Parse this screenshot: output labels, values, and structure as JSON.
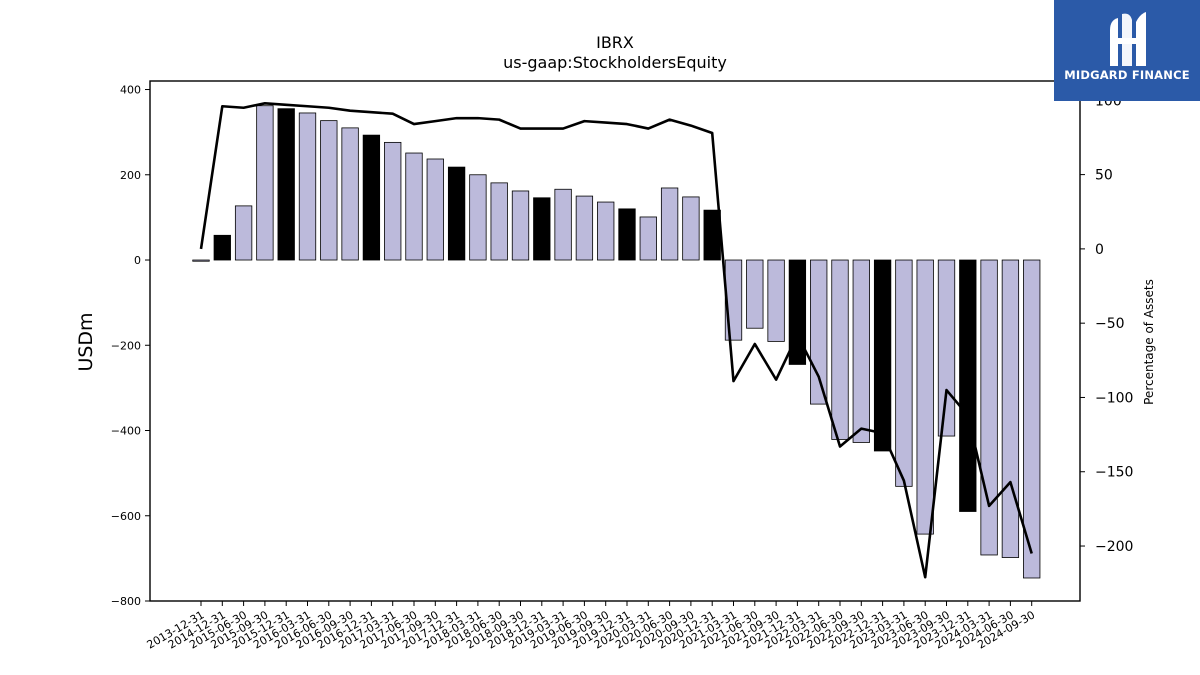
{
  "chart_data": {
    "type": "bar+line",
    "title": "IBRX",
    "subtitle": "us-gaap:StockholdersEquity",
    "ylabel": "USDm",
    "y2label": "Percentage of Assets",
    "ylim": [
      -800,
      420
    ],
    "y2lim": [
      -237,
      113
    ],
    "yticks": [
      -800,
      -600,
      -400,
      -200,
      0,
      200,
      400
    ],
    "y2ticks": [
      -200,
      -150,
      -100,
      -50,
      0,
      50,
      100
    ],
    "categories": [
      "2013-12-31",
      "2014-12-31",
      "2015-06-30",
      "2015-09-30",
      "2015-12-31",
      "2016-03-31",
      "2016-06-30",
      "2016-09-30",
      "2016-12-31",
      "2017-03-31",
      "2017-06-30",
      "2017-09-30",
      "2017-12-31",
      "2018-03-31",
      "2018-06-30",
      "2018-09-30",
      "2018-12-31",
      "2019-03-31",
      "2019-06-30",
      "2019-09-30",
      "2019-12-31",
      "2020-03-31",
      "2020-06-30",
      "2020-09-30",
      "2020-12-31",
      "2021-03-31",
      "2021-06-30",
      "2021-09-30",
      "2021-12-31",
      "2022-03-31",
      "2022-06-30",
      "2022-09-30",
      "2022-12-31",
      "2023-03-31",
      "2023-06-30",
      "2023-09-30",
      "2023-12-31",
      "2024-03-31",
      "2024-06-30",
      "2024-09-30"
    ],
    "highlight": [
      false,
      true,
      false,
      false,
      true,
      false,
      false,
      false,
      true,
      false,
      false,
      false,
      true,
      false,
      false,
      false,
      true,
      false,
      false,
      false,
      true,
      false,
      false,
      false,
      true,
      false,
      false,
      false,
      true,
      false,
      false,
      false,
      true,
      false,
      false,
      false,
      true,
      false,
      false,
      false
    ],
    "series": [
      {
        "type": "bar",
        "axis": "left",
        "values": [
          -2,
          58,
          127,
          362,
          355,
          345,
          327,
          310,
          293,
          276,
          251,
          237,
          218,
          200,
          181,
          162,
          146,
          166,
          150,
          136,
          120,
          101,
          169,
          148,
          117,
          -188,
          -160,
          -191,
          -245,
          -338,
          -421,
          -428,
          -448,
          -531,
          -643,
          -413,
          -590,
          -692,
          -698,
          -746
        ]
      },
      {
        "type": "line",
        "axis": "right",
        "values": [
          0,
          96,
          95,
          98,
          97,
          96,
          95,
          93,
          92,
          91,
          84,
          86,
          88,
          88,
          87,
          81,
          81,
          81,
          86,
          85,
          84,
          81,
          87,
          83,
          78,
          -89,
          -64,
          -88,
          -58,
          -86,
          -133,
          -121,
          -124,
          -156,
          -221,
          -95,
          -112,
          -173,
          -157,
          -205
        ]
      }
    ],
    "colors": {
      "bar": "#bcbadb",
      "bar_highlight": "#000000",
      "line": "#000000"
    },
    "grid": false,
    "legend": "none"
  },
  "logo": {
    "text": "MIDGARD FINANCE"
  }
}
